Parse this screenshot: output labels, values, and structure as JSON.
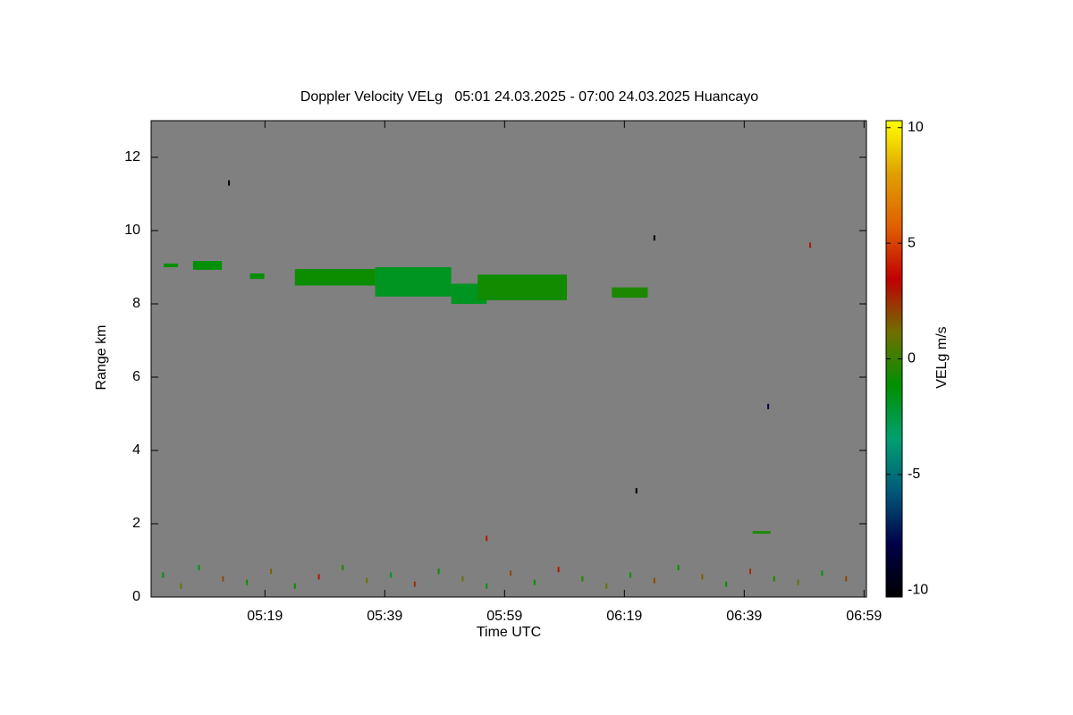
{
  "chart_data": {
    "type": "heatmap",
    "title": "Doppler Velocity VELg   05:01 24.03.2025 - 07:00 24.03.2025 Huancayo",
    "x_label": "Time UTC",
    "y_label": "Range km",
    "colorbar_label": "VELg m/s",
    "xlim": [
      300,
      419.4
    ],
    "xticks": [
      {
        "value": 319,
        "label": "05:19"
      },
      {
        "value": 339,
        "label": "05:39"
      },
      {
        "value": 359,
        "label": "05:59"
      },
      {
        "value": 379,
        "label": "06:19"
      },
      {
        "value": 399,
        "label": "06:39"
      },
      {
        "value": 419,
        "label": "06:59"
      }
    ],
    "ylim": [
      0,
      13
    ],
    "yticks": [
      0,
      2,
      4,
      6,
      8,
      10,
      12
    ],
    "clim": [
      -10.3,
      10.3
    ],
    "cticks": [
      -10,
      -5,
      0,
      5,
      10
    ],
    "background": "#808080",
    "colormap": [
      "#000000",
      "#00004a",
      "#005a7a",
      "#00a070",
      "#009000",
      "#707000",
      "#c00000",
      "#e06000",
      "#e0a000",
      "#ffff00"
    ],
    "cells": [
      {
        "t": [
          302.1,
          304.5
        ],
        "r": [
          9.0,
          9.1
        ],
        "v": -1
      },
      {
        "t": [
          307.0,
          311.8
        ],
        "r": [
          8.93,
          9.17
        ],
        "v": -1.2
      },
      {
        "t": [
          316.5,
          318.9
        ],
        "r": [
          8.68,
          8.83
        ],
        "v": -1
      },
      {
        "t": [
          324.0,
          337.4
        ],
        "r": [
          8.5,
          8.95
        ],
        "v": -0.9
      },
      {
        "t": [
          337.4,
          350.1
        ],
        "r": [
          8.2,
          9.0
        ],
        "v": -1.8
      },
      {
        "t": [
          350.1,
          356.0
        ],
        "r": [
          8.0,
          8.55
        ],
        "v": -1.8
      },
      {
        "t": [
          354.5,
          369.4
        ],
        "r": [
          8.1,
          8.8
        ],
        "v": -0.8
      },
      {
        "t": [
          376.9,
          382.9
        ],
        "r": [
          8.17,
          8.45
        ],
        "v": -0.6
      },
      {
        "t": [
          400.4,
          403.4
        ],
        "r": [
          1.73,
          1.8
        ],
        "v": -0.7
      }
    ],
    "points": [
      [
        302,
        0.6,
        -1
      ],
      [
        305,
        0.3,
        1
      ],
      [
        308,
        0.8,
        -1.5
      ],
      [
        312,
        0.5,
        2
      ],
      [
        316,
        0.4,
        -1
      ],
      [
        320,
        0.7,
        1.5
      ],
      [
        324,
        0.3,
        -1
      ],
      [
        328,
        0.55,
        3
      ],
      [
        332,
        0.8,
        -0.5
      ],
      [
        336,
        0.45,
        1
      ],
      [
        340,
        0.6,
        -2
      ],
      [
        344,
        0.35,
        2.5
      ],
      [
        348,
        0.7,
        -1
      ],
      [
        352,
        0.5,
        1
      ],
      [
        356,
        0.3,
        -1.5
      ],
      [
        360,
        0.65,
        2
      ],
      [
        364,
        0.4,
        -1
      ],
      [
        368,
        0.75,
        3
      ],
      [
        372,
        0.5,
        -0.5
      ],
      [
        376,
        0.3,
        1
      ],
      [
        380,
        0.6,
        -1.5
      ],
      [
        384,
        0.45,
        2
      ],
      [
        388,
        0.8,
        -1
      ],
      [
        392,
        0.55,
        1.5
      ],
      [
        396,
        0.35,
        -1
      ],
      [
        400,
        0.7,
        2.5
      ],
      [
        404,
        0.5,
        -0.5
      ],
      [
        408,
        0.4,
        1
      ],
      [
        412,
        0.65,
        -1.5
      ],
      [
        416,
        0.5,
        2
      ],
      [
        313,
        11.3,
        -10
      ],
      [
        384,
        9.8,
        -10
      ],
      [
        410,
        9.6,
        3
      ],
      [
        381,
        2.9,
        -10
      ],
      [
        356,
        1.6,
        3
      ],
      [
        403,
        5.2,
        -8
      ]
    ]
  }
}
